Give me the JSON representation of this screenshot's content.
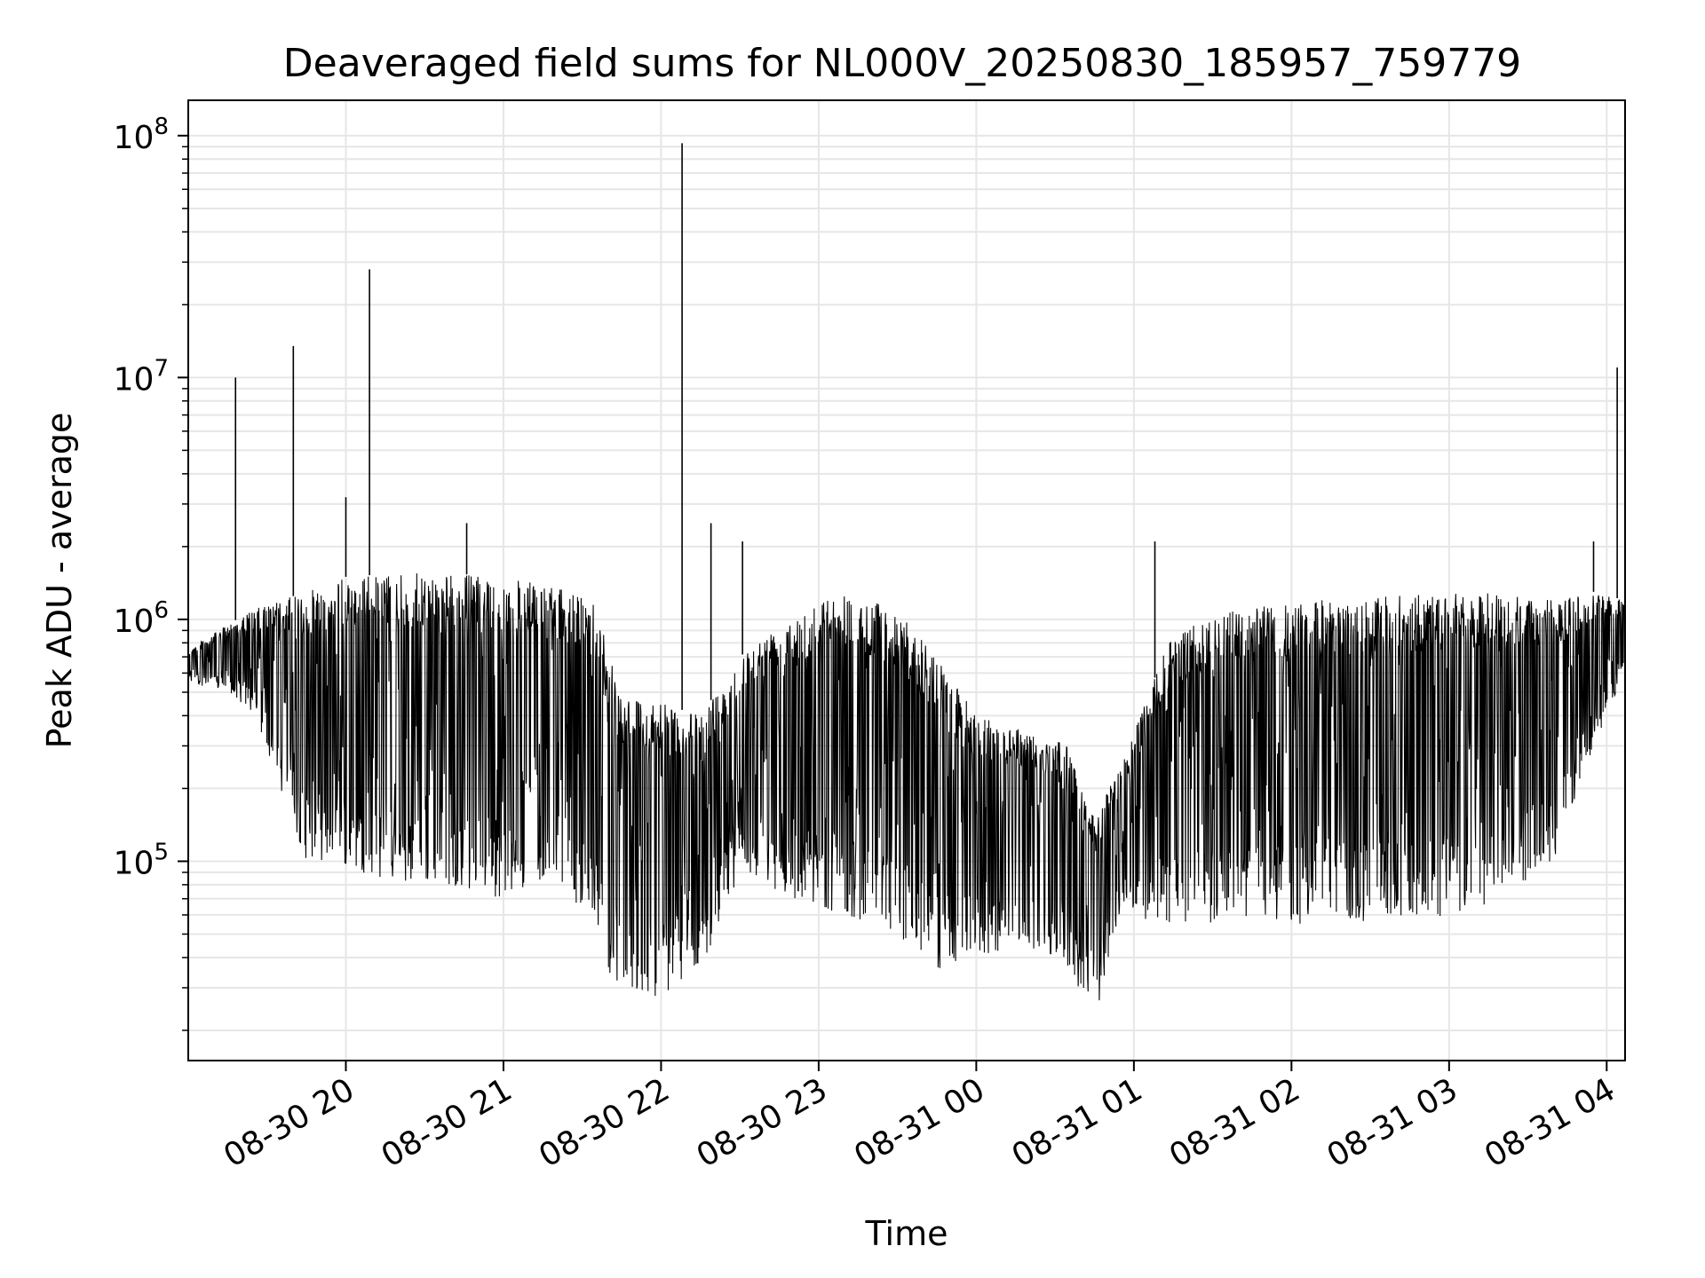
{
  "chart_data": {
    "type": "line",
    "title": "Deaveraged field sums for NL000V_20250830_185957_759779",
    "xlabel": "Time",
    "ylabel": "Peak ADU - average",
    "yscale": "log",
    "ylim": [
      15000,
      140000000
    ],
    "xlim": [
      "2025-08-30 19:00",
      "2025-08-31 04:07"
    ],
    "grid": true,
    "legend": "none",
    "line_color": "#000000",
    "x_ticks": [
      {
        "time": "2025-08-30 20:00",
        "label": "08-30 20"
      },
      {
        "time": "2025-08-30 21:00",
        "label": "08-30 21"
      },
      {
        "time": "2025-08-30 22:00",
        "label": "08-30 22"
      },
      {
        "time": "2025-08-30 23:00",
        "label": "08-30 23"
      },
      {
        "time": "2025-08-31 00:00",
        "label": "08-31 00"
      },
      {
        "time": "2025-08-31 01:00",
        "label": "08-31 01"
      },
      {
        "time": "2025-08-31 02:00",
        "label": "08-31 02"
      },
      {
        "time": "2025-08-31 03:00",
        "label": "08-31 03"
      },
      {
        "time": "2025-08-31 04:00",
        "label": "08-31 04"
      }
    ],
    "y_ticks": [
      {
        "value": 100000,
        "base": "10",
        "exp": "5"
      },
      {
        "value": 1000000,
        "base": "10",
        "exp": "6"
      },
      {
        "value": 10000000,
        "base": "10",
        "exp": "7"
      },
      {
        "value": 100000000,
        "base": "10",
        "exp": "8"
      }
    ],
    "series": [
      {
        "envelope": [
          {
            "time": "2025-08-30 19:00",
            "high": 750000,
            "low": 550000
          },
          {
            "time": "2025-08-30 19:15",
            "high": 950000,
            "low": 500000
          },
          {
            "time": "2025-08-30 19:25",
            "high": 1100000,
            "low": 400000
          },
          {
            "time": "2025-08-30 19:35",
            "high": 1200000,
            "low": 200000
          },
          {
            "time": "2025-08-30 19:45",
            "high": 1300000,
            "low": 100000
          },
          {
            "time": "2025-08-30 20:00",
            "high": 1500000,
            "low": 95000
          },
          {
            "time": "2025-08-30 20:20",
            "high": 1550000,
            "low": 80000
          },
          {
            "time": "2025-08-30 20:40",
            "high": 1550000,
            "low": 80000
          },
          {
            "time": "2025-08-30 21:00",
            "high": 1500000,
            "low": 70000
          },
          {
            "time": "2025-08-30 21:20",
            "high": 1350000,
            "low": 90000
          },
          {
            "time": "2025-08-30 21:35",
            "high": 1200000,
            "low": 50000
          },
          {
            "time": "2025-08-30 21:45",
            "high": 500000,
            "low": 25000
          },
          {
            "time": "2025-08-30 22:00",
            "high": 450000,
            "low": 28000
          },
          {
            "time": "2025-08-30 22:15",
            "high": 400000,
            "low": 35000
          },
          {
            "time": "2025-08-30 22:30",
            "high": 700000,
            "low": 90000
          },
          {
            "time": "2025-08-30 22:50",
            "high": 1100000,
            "low": 70000
          },
          {
            "time": "2025-08-30 23:10",
            "high": 1300000,
            "low": 60000
          },
          {
            "time": "2025-08-30 23:30",
            "high": 1100000,
            "low": 50000
          },
          {
            "time": "2025-08-30 23:45",
            "high": 700000,
            "low": 35000
          },
          {
            "time": "2025-08-31 00:00",
            "high": 400000,
            "low": 40000
          },
          {
            "time": "2025-08-31 00:20",
            "high": 350000,
            "low": 45000
          },
          {
            "time": "2025-08-31 00:35",
            "high": 300000,
            "low": 35000
          },
          {
            "time": "2025-08-31 00:45",
            "high": 150000,
            "low": 22000
          },
          {
            "time": "2025-08-31 00:55",
            "high": 250000,
            "low": 60000
          },
          {
            "time": "2025-08-31 01:15",
            "high": 900000,
            "low": 55000
          },
          {
            "time": "2025-08-31 01:40",
            "high": 1100000,
            "low": 55000
          },
          {
            "time": "2025-08-31 02:10",
            "high": 1200000,
            "low": 55000
          },
          {
            "time": "2025-08-31 02:40",
            "high": 1250000,
            "low": 55000
          },
          {
            "time": "2025-08-31 03:10",
            "high": 1300000,
            "low": 60000
          },
          {
            "time": "2025-08-31 03:40",
            "high": 1200000,
            "low": 100000
          },
          {
            "time": "2025-08-31 03:55",
            "high": 1300000,
            "low": 300000
          },
          {
            "time": "2025-08-31 04:07",
            "high": 1200000,
            "low": 600000
          }
        ],
        "spikes": [
          {
            "time": "2025-08-30 19:18",
            "value": 10000000
          },
          {
            "time": "2025-08-30 19:40",
            "value": 13500000
          },
          {
            "time": "2025-08-30 20:00",
            "value": 3200000
          },
          {
            "time": "2025-08-30 20:09",
            "value": 28000000
          },
          {
            "time": "2025-08-30 20:46",
            "value": 2500000
          },
          {
            "time": "2025-08-30 22:08",
            "value": 93000000
          },
          {
            "time": "2025-08-30 22:19",
            "value": 2500000
          },
          {
            "time": "2025-08-30 22:31",
            "value": 2100000
          },
          {
            "time": "2025-08-31 01:08",
            "value": 2100000
          },
          {
            "time": "2025-08-31 03:55",
            "value": 2100000
          },
          {
            "time": "2025-08-31 04:04",
            "value": 11000000
          }
        ]
      }
    ]
  }
}
